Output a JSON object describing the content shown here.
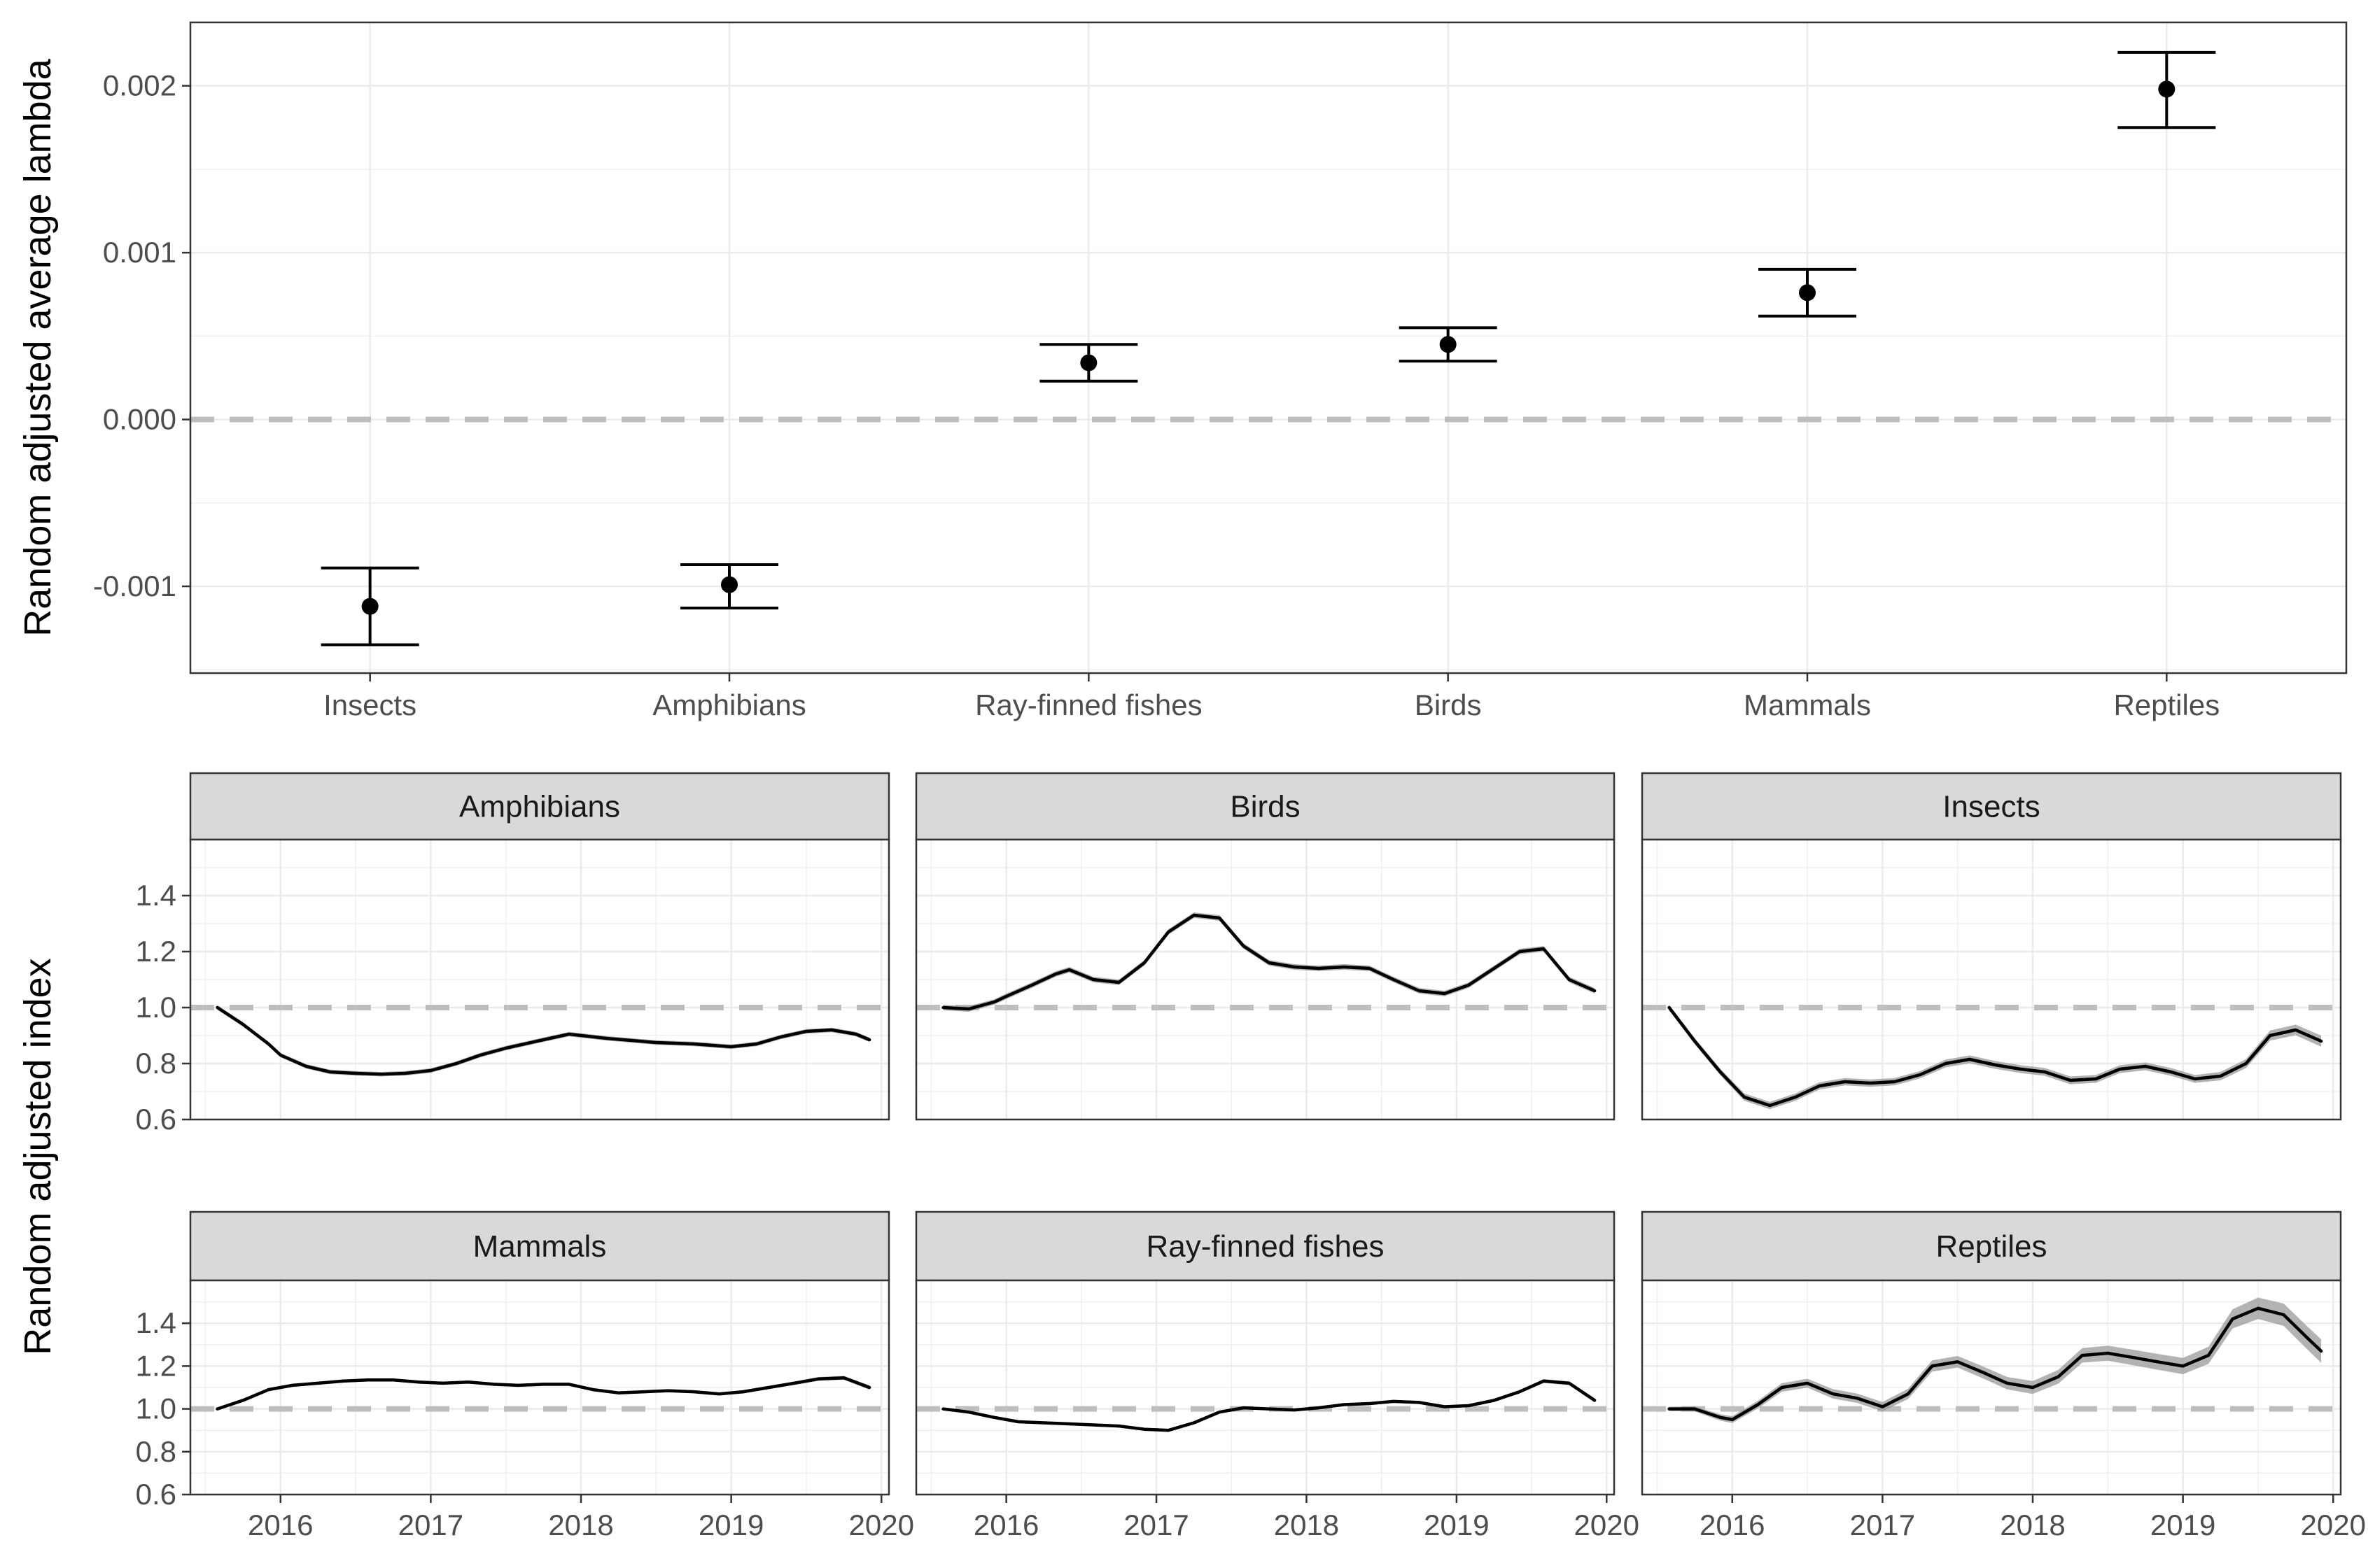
{
  "chart_data": [
    {
      "type": "scatter",
      "subtype": "point-errorbar",
      "title": "",
      "xlabel": "",
      "ylabel": "Random adjusted average lambda",
      "categories": [
        "Insects",
        "Amphibians",
        "Ray-finned fishes",
        "Birds",
        "Mammals",
        "Reptiles"
      ],
      "values": [
        -0.00112,
        -0.00099,
        0.00034,
        0.00045,
        0.00076,
        0.00198
      ],
      "lower": [
        -0.00135,
        -0.00113,
        0.00023,
        0.00035,
        0.00062,
        0.00175
      ],
      "upper": [
        -0.00089,
        -0.00087,
        0.00045,
        0.00055,
        0.0009,
        0.0022
      ],
      "ylim": [
        -0.00152,
        0.00238
      ],
      "yticks": [
        -0.001,
        0.0,
        0.001,
        0.002
      ],
      "ytick_labels": [
        "-0.001",
        "0.000",
        "0.001",
        "0.002"
      ],
      "reference_line": 0,
      "grid": true,
      "legend": "none"
    },
    {
      "type": "line",
      "subtype": "faceted-ribbon",
      "title": "",
      "ylabel": "Random adjusted index",
      "xlim": [
        2015.4,
        2020.05
      ],
      "xticks": [
        2016,
        2017,
        2018,
        2019,
        2020
      ],
      "xtick_labels": [
        "2016",
        "2017",
        "2018",
        "2019",
        "2020"
      ],
      "ylim": [
        0.6,
        1.6
      ],
      "yticks": [
        0.6,
        0.8,
        1.0,
        1.2,
        1.4
      ],
      "ytick_labels": [
        "0.6",
        "0.8",
        "1.0",
        "1.2",
        "1.4"
      ],
      "reference_line": 1.0,
      "grid": true,
      "legend": "none",
      "panels": [
        {
          "name": "Amphibians",
          "x": [
            2015.58,
            2015.75,
            2015.92,
            2016.0,
            2016.17,
            2016.33,
            2016.5,
            2016.67,
            2016.83,
            2017.0,
            2017.17,
            2017.33,
            2017.5,
            2017.75,
            2017.92,
            2018.17,
            2018.5,
            2018.75,
            2019.0,
            2019.17,
            2019.33,
            2019.5,
            2019.67,
            2019.83,
            2019.92
          ],
          "values": [
            1.0,
            0.94,
            0.87,
            0.83,
            0.79,
            0.77,
            0.765,
            0.762,
            0.765,
            0.775,
            0.8,
            0.83,
            0.855,
            0.885,
            0.905,
            0.89,
            0.875,
            0.87,
            0.86,
            0.87,
            0.895,
            0.915,
            0.92,
            0.905,
            0.885
          ],
          "band": [
            0.008,
            0.008,
            0.008,
            0.008,
            0.008,
            0.008,
            0.008,
            0.008,
            0.008,
            0.008,
            0.008,
            0.008,
            0.008,
            0.008,
            0.008,
            0.008,
            0.008,
            0.008,
            0.008,
            0.008,
            0.008,
            0.008,
            0.008,
            0.008,
            0.008
          ]
        },
        {
          "name": "Birds",
          "x": [
            2015.58,
            2015.75,
            2015.92,
            2016.0,
            2016.17,
            2016.33,
            2016.42,
            2016.58,
            2016.75,
            2016.92,
            2017.08,
            2017.25,
            2017.42,
            2017.58,
            2017.75,
            2017.92,
            2018.08,
            2018.25,
            2018.42,
            2018.58,
            2018.75,
            2018.92,
            2019.08,
            2019.25,
            2019.42,
            2019.58,
            2019.75,
            2019.92
          ],
          "values": [
            1.0,
            0.995,
            1.02,
            1.04,
            1.08,
            1.12,
            1.135,
            1.1,
            1.09,
            1.16,
            1.27,
            1.33,
            1.32,
            1.22,
            1.16,
            1.145,
            1.14,
            1.145,
            1.14,
            1.1,
            1.06,
            1.05,
            1.08,
            1.14,
            1.2,
            1.21,
            1.1,
            1.06
          ],
          "band": [
            0.01,
            0.01,
            0.01,
            0.01,
            0.01,
            0.01,
            0.01,
            0.01,
            0.01,
            0.01,
            0.01,
            0.01,
            0.01,
            0.01,
            0.01,
            0.01,
            0.01,
            0.01,
            0.01,
            0.01,
            0.01,
            0.01,
            0.01,
            0.01,
            0.01,
            0.01,
            0.01,
            0.01
          ]
        },
        {
          "name": "Insects",
          "x": [
            2015.58,
            2015.75,
            2015.92,
            2016.08,
            2016.25,
            2016.42,
            2016.58,
            2016.75,
            2016.92,
            2017.08,
            2017.25,
            2017.42,
            2017.58,
            2017.75,
            2017.92,
            2018.08,
            2018.25,
            2018.42,
            2018.58,
            2018.75,
            2018.92,
            2019.08,
            2019.25,
            2019.42,
            2019.58,
            2019.75,
            2019.92
          ],
          "values": [
            1.0,
            0.88,
            0.77,
            0.68,
            0.65,
            0.68,
            0.72,
            0.735,
            0.73,
            0.735,
            0.76,
            0.8,
            0.815,
            0.795,
            0.78,
            0.77,
            0.74,
            0.745,
            0.78,
            0.79,
            0.77,
            0.745,
            0.755,
            0.8,
            0.9,
            0.92,
            0.88
          ],
          "band": [
            0.01,
            0.011,
            0.012,
            0.013,
            0.013,
            0.013,
            0.013,
            0.013,
            0.013,
            0.013,
            0.013,
            0.014,
            0.014,
            0.014,
            0.014,
            0.014,
            0.014,
            0.014,
            0.014,
            0.014,
            0.014,
            0.014,
            0.015,
            0.016,
            0.018,
            0.019,
            0.02
          ]
        },
        {
          "name": "Mammals",
          "x": [
            2015.58,
            2015.75,
            2015.92,
            2016.08,
            2016.25,
            2016.42,
            2016.58,
            2016.75,
            2016.92,
            2017.08,
            2017.25,
            2017.42,
            2017.58,
            2017.75,
            2017.92,
            2018.08,
            2018.25,
            2018.42,
            2018.58,
            2018.75,
            2018.92,
            2019.08,
            2019.25,
            2019.42,
            2019.58,
            2019.75,
            2019.92
          ],
          "values": [
            1.0,
            1.04,
            1.09,
            1.11,
            1.12,
            1.13,
            1.135,
            1.135,
            1.125,
            1.12,
            1.125,
            1.115,
            1.11,
            1.115,
            1.115,
            1.09,
            1.075,
            1.08,
            1.085,
            1.08,
            1.07,
            1.08,
            1.1,
            1.12,
            1.14,
            1.145,
            1.1
          ],
          "band": [
            0.007,
            0.007,
            0.007,
            0.007,
            0.007,
            0.007,
            0.007,
            0.007,
            0.007,
            0.007,
            0.007,
            0.007,
            0.007,
            0.007,
            0.007,
            0.007,
            0.007,
            0.007,
            0.007,
            0.007,
            0.007,
            0.008,
            0.008,
            0.008,
            0.009,
            0.009,
            0.01
          ]
        },
        {
          "name": "Ray-finned fishes",
          "x": [
            2015.58,
            2015.75,
            2015.92,
            2016.08,
            2016.25,
            2016.42,
            2016.58,
            2016.75,
            2016.92,
            2017.08,
            2017.25,
            2017.42,
            2017.58,
            2017.75,
            2017.92,
            2018.08,
            2018.25,
            2018.42,
            2018.58,
            2018.75,
            2018.92,
            2019.08,
            2019.25,
            2019.42,
            2019.58,
            2019.75,
            2019.92
          ],
          "values": [
            1.0,
            0.985,
            0.96,
            0.94,
            0.935,
            0.93,
            0.925,
            0.92,
            0.905,
            0.9,
            0.935,
            0.985,
            1.005,
            1.0,
            0.995,
            1.005,
            1.02,
            1.025,
            1.035,
            1.03,
            1.01,
            1.015,
            1.04,
            1.08,
            1.13,
            1.12,
            1.04
          ],
          "band": [
            0.007,
            0.007,
            0.007,
            0.007,
            0.007,
            0.007,
            0.007,
            0.007,
            0.007,
            0.007,
            0.007,
            0.007,
            0.007,
            0.007,
            0.007,
            0.007,
            0.007,
            0.007,
            0.007,
            0.007,
            0.007,
            0.007,
            0.008,
            0.008,
            0.009,
            0.009,
            0.01
          ]
        },
        {
          "name": "Reptiles",
          "x": [
            2015.58,
            2015.75,
            2015.92,
            2016.0,
            2016.17,
            2016.33,
            2016.5,
            2016.67,
            2016.83,
            2017.0,
            2017.17,
            2017.33,
            2017.5,
            2017.67,
            2017.83,
            2018.0,
            2018.17,
            2018.33,
            2018.5,
            2018.67,
            2018.83,
            2019.0,
            2019.17,
            2019.33,
            2019.5,
            2019.67,
            2019.83,
            2019.92
          ],
          "values": [
            1.0,
            1.0,
            0.96,
            0.95,
            1.02,
            1.1,
            1.12,
            1.07,
            1.05,
            1.01,
            1.07,
            1.2,
            1.22,
            1.17,
            1.12,
            1.1,
            1.15,
            1.25,
            1.26,
            1.24,
            1.22,
            1.2,
            1.25,
            1.42,
            1.47,
            1.44,
            1.33,
            1.27
          ],
          "band": [
            0.01,
            0.012,
            0.015,
            0.016,
            0.018,
            0.02,
            0.021,
            0.022,
            0.022,
            0.022,
            0.024,
            0.026,
            0.027,
            0.028,
            0.029,
            0.03,
            0.032,
            0.034,
            0.035,
            0.036,
            0.037,
            0.038,
            0.04,
            0.045,
            0.05,
            0.052,
            0.054,
            0.055
          ]
        }
      ]
    }
  ]
}
